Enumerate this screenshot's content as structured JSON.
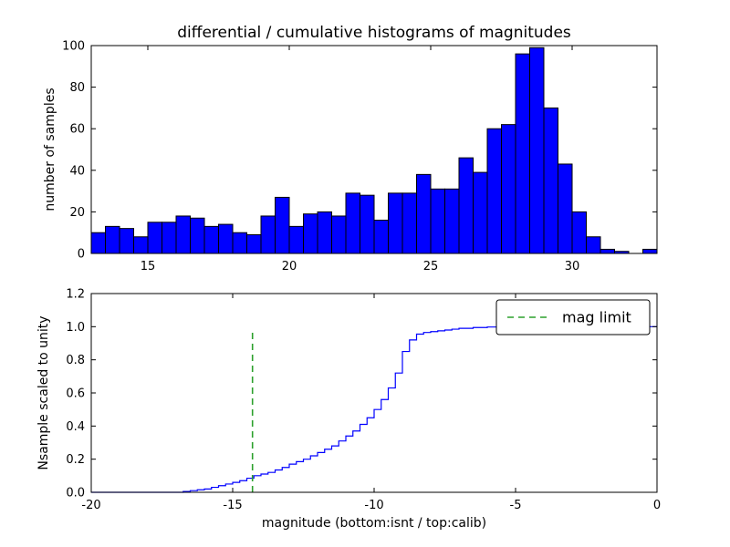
{
  "figure": {
    "title": "differential / cumulative histograms of magnitudes",
    "background": "#ffffff",
    "frame_color": "#000000"
  },
  "chart_data": [
    {
      "type": "bar",
      "subtype": "histogram",
      "title": "differential / cumulative histograms of magnitudes",
      "xlabel": "",
      "ylabel": "number of samples",
      "xlim": [
        13,
        33
      ],
      "ylim": [
        0,
        100
      ],
      "xticks": [
        15,
        20,
        25,
        30
      ],
      "xtick_labels": [
        "15",
        "20",
        "25",
        "30"
      ],
      "yticks": [
        0,
        20,
        40,
        60,
        80,
        100
      ],
      "ytick_labels": [
        "0",
        "20",
        "40",
        "60",
        "80",
        "100"
      ],
      "bin_start": 13.0,
      "bin_width": 0.5,
      "bar_color": "#0000ff",
      "bar_edge_color": "#000000",
      "values": [
        10,
        13,
        12,
        8,
        15,
        15,
        18,
        17,
        13,
        14,
        10,
        9,
        18,
        27,
        13,
        19,
        20,
        18,
        29,
        28,
        16,
        29,
        29,
        38,
        31,
        31,
        46,
        39,
        60,
        62,
        96,
        99,
        70,
        43,
        20,
        8,
        2,
        1,
        0,
        2
      ]
    },
    {
      "type": "line",
      "subtype": "cumulative-step",
      "xlabel": "magnitude (bottom:isnt / top:calib)",
      "ylabel": "Nsample scaled to unity",
      "xlim": [
        -20,
        0
      ],
      "ylim": [
        0,
        1.2
      ],
      "xticks": [
        -20,
        -15,
        -10,
        -5,
        0
      ],
      "xtick_labels": [
        "-20",
        "-15",
        "-10",
        "-5",
        "0"
      ],
      "yticks": [
        0,
        0.2,
        0.4,
        0.6,
        0.8,
        1.0,
        1.2
      ],
      "ytick_labels": [
        "0.0",
        "0.2",
        "0.4",
        "0.6",
        "0.8",
        "1.0",
        "1.2"
      ],
      "line_color": "#0000ff",
      "points": [
        [
          -20,
          0
        ],
        [
          -17,
          0
        ],
        [
          -16.75,
          0.005
        ],
        [
          -16.5,
          0.01
        ],
        [
          -16.25,
          0.015
        ],
        [
          -16,
          0.02
        ],
        [
          -15.75,
          0.03
        ],
        [
          -15.5,
          0.04
        ],
        [
          -15.25,
          0.05
        ],
        [
          -15,
          0.06
        ],
        [
          -14.75,
          0.07
        ],
        [
          -14.5,
          0.085
        ],
        [
          -14.25,
          0.1
        ],
        [
          -14,
          0.11
        ],
        [
          -13.75,
          0.12
        ],
        [
          -13.5,
          0.135
        ],
        [
          -13.25,
          0.15
        ],
        [
          -13,
          0.17
        ],
        [
          -12.75,
          0.185
        ],
        [
          -12.5,
          0.2
        ],
        [
          -12.25,
          0.22
        ],
        [
          -12,
          0.24
        ],
        [
          -11.75,
          0.26
        ],
        [
          -11.5,
          0.28
        ],
        [
          -11.25,
          0.31
        ],
        [
          -11,
          0.34
        ],
        [
          -10.75,
          0.37
        ],
        [
          -10.5,
          0.41
        ],
        [
          -10.25,
          0.45
        ],
        [
          -10,
          0.5
        ],
        [
          -9.75,
          0.56
        ],
        [
          -9.5,
          0.63
        ],
        [
          -9.25,
          0.72
        ],
        [
          -9,
          0.85
        ],
        [
          -8.75,
          0.92
        ],
        [
          -8.5,
          0.955
        ],
        [
          -8.25,
          0.965
        ],
        [
          -8,
          0.97
        ],
        [
          -7.75,
          0.975
        ],
        [
          -7.5,
          0.98
        ],
        [
          -7.25,
          0.985
        ],
        [
          -7,
          0.99
        ],
        [
          -6.5,
          0.995
        ],
        [
          -6,
          0.998
        ],
        [
          -5.5,
          1.0
        ],
        [
          0,
          1.0
        ]
      ],
      "mag_limit_line": {
        "x": -14.3,
        "y_bottom": 0,
        "y_top": 0.97,
        "color": "#2ca02c",
        "style": "dashed"
      },
      "legend": {
        "label": "mag limit",
        "position": "upper right",
        "line_color": "#2ca02c",
        "line_style": "dashed"
      }
    }
  ]
}
